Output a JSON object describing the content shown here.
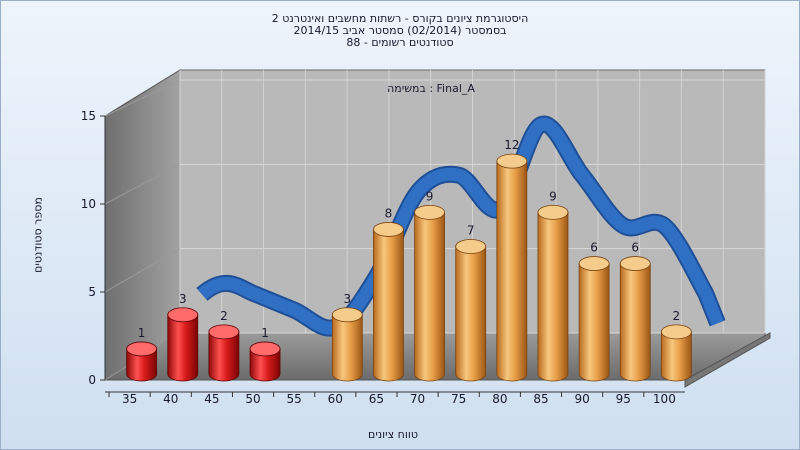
{
  "title": {
    "line1": "היסטוגרמת ציונים בקורס - רשתות מחשבים ואינטרנט 2",
    "line2": "בסמסטר  (02/2014)  סמסטר אביב 2014/15",
    "line3": "סטודנטים רשומים - 88",
    "annotation": "במשימה : Final_A"
  },
  "colors": {
    "fail_bar": "#d81a1a",
    "pass_bar": "#e9a04a",
    "curve": "#2f6fc4",
    "back_wall": "#b9b9b9",
    "side_wall": "#7f7f7f",
    "floor": "#8e8e8e"
  },
  "chart_data": {
    "type": "bar",
    "categories": [
      "35",
      "40",
      "45",
      "50",
      "55",
      "60",
      "65",
      "70",
      "75",
      "80",
      "85",
      "90",
      "95",
      "100"
    ],
    "values": [
      1,
      3,
      2,
      1,
      0,
      3,
      8,
      9,
      7,
      12,
      9,
      6,
      6,
      2
    ],
    "fail_threshold": 55,
    "xlabel": "טווח ציונים",
    "ylabel": "מספר סטודנטים",
    "ylim": [
      0,
      15
    ],
    "yticks": [
      "0",
      "5",
      "10",
      "15"
    ],
    "grid": true,
    "three_d": true
  }
}
